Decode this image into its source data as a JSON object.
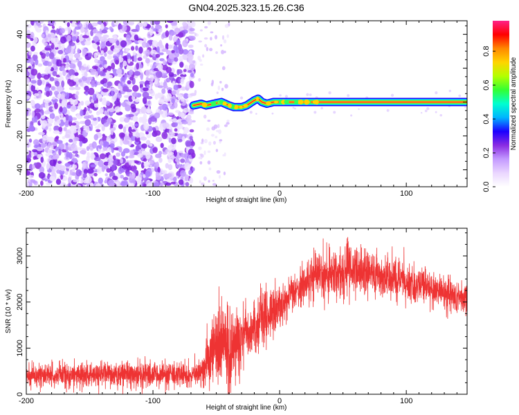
{
  "title": "GN04.2025.323.15.26.C36",
  "colors": {
    "snr_line": "#ee3333",
    "scatter_base": "#8a2be2",
    "ridge": "#ff2a2a",
    "frame": "#000000"
  },
  "chart_data": [
    {
      "type": "heatmap",
      "name": "spectrogram",
      "xlabel": "Height of straight line (km)",
      "ylabel": "Frequency (Hz)",
      "xlim": [
        -200,
        148
      ],
      "ylim": [
        -50,
        48
      ],
      "x_ticks": [
        -200,
        -100,
        0,
        100
      ],
      "y_ticks": [
        -40,
        -20,
        0,
        20,
        40
      ],
      "noise_region": {
        "x_range": [
          -200,
          -68
        ],
        "freq_range": [
          -50,
          48
        ]
      },
      "sparse_region": {
        "x_range": [
          -68,
          -40
        ]
      },
      "ridge": {
        "x": [
          -68,
          -62,
          -58,
          -52,
          -46,
          -40,
          -36,
          -30,
          -26,
          -20,
          -17,
          -14,
          -10,
          -5,
          0,
          10,
          30,
          60,
          100,
          148
        ],
        "freq": [
          -2,
          -1,
          -2,
          -1,
          0,
          -2,
          -3,
          -3,
          -2,
          1,
          2,
          0,
          -1,
          0,
          0,
          0,
          0,
          0,
          0,
          0
        ]
      },
      "colorbar": {
        "label": "Normalized spectral amplitude",
        "range": [
          0,
          0.98
        ],
        "ticks": [
          0.0,
          0.2,
          0.4,
          0.6,
          0.8
        ],
        "tick_labels": [
          "0.0",
          "0.2",
          "0.4",
          "0.6",
          "0.8"
        ],
        "colormap": [
          "#ffffff",
          "#ead6ff",
          "#c39aff",
          "#8a2be2",
          "#1c00ff",
          "#00b4ff",
          "#00ffd0",
          "#33ff33",
          "#b4ff00",
          "#ffd400",
          "#ff8800",
          "#ff0000",
          "#ff2288"
        ]
      }
    },
    {
      "type": "line",
      "name": "snr",
      "xlabel": "Height of straight line (km)",
      "ylabel": "SNR (10 * v/v)",
      "xlim": [
        -200,
        148
      ],
      "ylim": [
        0,
        3600
      ],
      "x_ticks": [
        -200,
        -100,
        0,
        100
      ],
      "y_ticks": [
        0,
        1000,
        2000,
        3000
      ],
      "series": [
        {
          "name": "SNR",
          "envelope_x": [
            -200,
            -150,
            -100,
            -62,
            -58,
            -52,
            -45,
            -40,
            -35,
            -30,
            -20,
            -10,
            0,
            10,
            20,
            30,
            40,
            50,
            60,
            70,
            80,
            90,
            100,
            110,
            120,
            130,
            140,
            148
          ],
          "mean": [
            420,
            420,
            420,
            430,
            700,
            950,
            1100,
            900,
            1000,
            1200,
            1450,
            1700,
            1900,
            2150,
            2400,
            2600,
            2650,
            2700,
            2700,
            2620,
            2550,
            2500,
            2450,
            2380,
            2300,
            2200,
            2100,
            2050
          ],
          "spread": [
            300,
            300,
            300,
            300,
            700,
            900,
            1000,
            1100,
            900,
            700,
            650,
            600,
            550,
            500,
            500,
            550,
            600,
            600,
            550,
            500,
            450,
            450,
            450,
            430,
            430,
            420,
            420,
            400
          ]
        }
      ]
    }
  ]
}
